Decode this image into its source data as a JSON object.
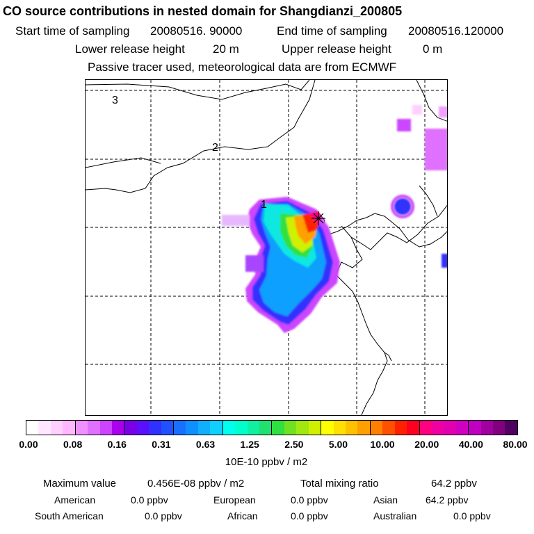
{
  "header": {
    "title": "CO  source contributions in nested domain for Shangdianzi_200805",
    "start_label": "Start time of sampling",
    "start_value": "20080516. 90000",
    "end_label": "End time of sampling",
    "end_value": "20080516.120000",
    "lower_label": "Lower release height",
    "lower_value": "20 m",
    "upper_label": "Upper release height",
    "upper_value": "0 m",
    "info": "Passive tracer used, meteorological data are from ECMWF"
  },
  "map": {
    "labels": [
      "3",
      "2",
      "1"
    ],
    "receptor_icon": "asterisk-cross-marker"
  },
  "colorbar": {
    "colors": [
      "#ffffff",
      "#ffe8ff",
      "#ffd0ff",
      "#ffb8ff",
      "#f090ff",
      "#e070ff",
      "#cc44ff",
      "#aa00ee",
      "#7a00e8",
      "#5a10ff",
      "#3030ff",
      "#2050ff",
      "#1870ff",
      "#1090ff",
      "#10b0ff",
      "#10d0ff",
      "#00ffee",
      "#00ffcc",
      "#10f0a0",
      "#20e070",
      "#30e040",
      "#70e020",
      "#a0e810",
      "#d0f000",
      "#ffff00",
      "#ffe000",
      "#ffc000",
      "#ffa000",
      "#ff8000",
      "#ff5000",
      "#ff2000",
      "#ff0020",
      "#ff0080",
      "#f000a0",
      "#e000b0",
      "#d000c0",
      "#c000c0",
      "#a000a0",
      "#800080",
      "#500060"
    ],
    "ticks": [
      "0.00",
      "0.08",
      "0.16",
      "0.31",
      "0.63",
      "1.25",
      "2.50",
      "5.00",
      "10.00",
      "20.00",
      "40.00",
      "80.00"
    ],
    "unit": "10E-10 ppbv / m2"
  },
  "stats": {
    "max_label": "Maximum value",
    "max_value": "0.456E-08 ppbv / m2",
    "total_label": "Total mixing ratio",
    "total_value": "64.2 ppbv"
  },
  "sources": [
    {
      "name": "American",
      "value": "0.0 ppbv"
    },
    {
      "name": "European",
      "value": "0.0 ppbv"
    },
    {
      "name": "Asian",
      "value": "64.2 ppbv"
    },
    {
      "name": "South American",
      "value": "0.0 ppbv"
    },
    {
      "name": "African",
      "value": "0.0 ppbv"
    },
    {
      "name": "Australian",
      "value": "0.0 ppbv"
    }
  ]
}
